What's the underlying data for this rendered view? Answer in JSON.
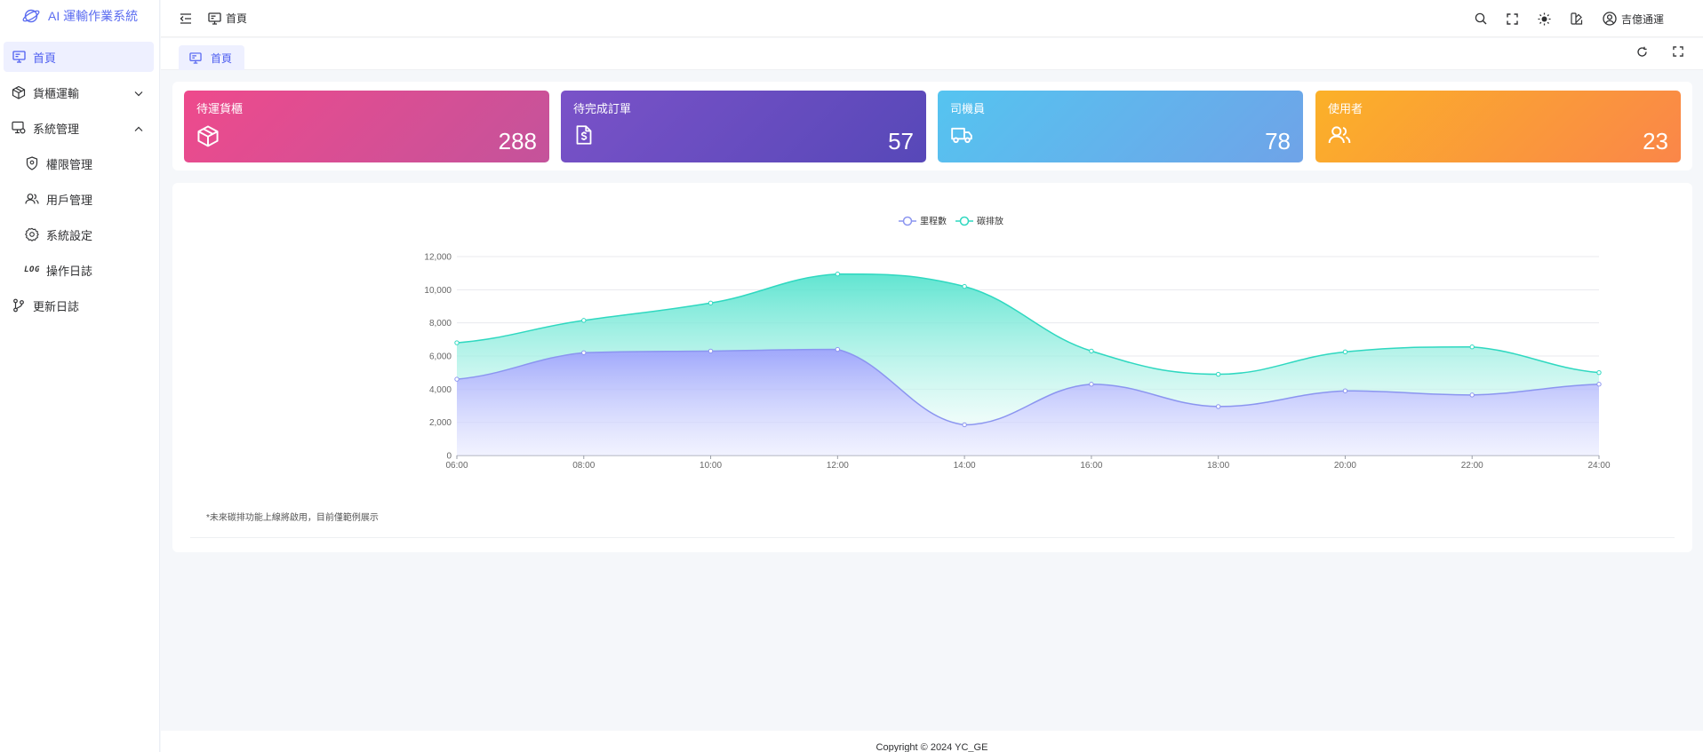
{
  "app": {
    "title": "AI 運輸作業系統"
  },
  "sidebar": {
    "items": [
      {
        "label": "首頁",
        "icon": "monitor-icon"
      },
      {
        "label": "貨櫃運輸",
        "icon": "box-icon"
      },
      {
        "label": "系統管理",
        "icon": "admin-screen-icon"
      },
      {
        "label": "權限管理",
        "icon": "shield-pin-icon"
      },
      {
        "label": "用戶管理",
        "icon": "users-icon"
      },
      {
        "label": "系統設定",
        "icon": "gear-icon"
      },
      {
        "label": "操作日誌",
        "icon": "log-icon",
        "icon_text": "LOG"
      },
      {
        "label": "更新日誌",
        "icon": "branch-icon"
      }
    ]
  },
  "header": {
    "breadcrumb": "首頁",
    "user": "吉億通運"
  },
  "tabs": [
    {
      "label": "首頁"
    }
  ],
  "stats": [
    {
      "title": "待運貨櫃",
      "value": "288",
      "icon": "box-icon"
    },
    {
      "title": "待完成訂單",
      "value": "57",
      "icon": "dollar-doc-icon"
    },
    {
      "title": "司機員",
      "value": "78",
      "icon": "truck-icon"
    },
    {
      "title": "使用者",
      "value": "23",
      "icon": "users-icon"
    }
  ],
  "colors": {
    "accent": "#4f5ff0",
    "series1": "#8b95f0",
    "series2": "#2fd8c0"
  },
  "chart_data": {
    "type": "area",
    "x": [
      "06:00",
      "08:00",
      "10:00",
      "12:00",
      "14:00",
      "16:00",
      "18:00",
      "20:00",
      "22:00",
      "24:00"
    ],
    "yticks": [
      "0",
      "2,000",
      "4,000",
      "6,000",
      "8,000",
      "10,000",
      "12,000"
    ],
    "ylim": [
      0,
      12000
    ],
    "stacked": true,
    "legend": "top-center",
    "grid": true,
    "series": [
      {
        "name": "里程數",
        "values": [
          4600,
          6200,
          6300,
          6400,
          1850,
          4300,
          2950,
          3900,
          3650,
          4300
        ]
      },
      {
        "name": "碳排放",
        "values": [
          2200,
          1950,
          2900,
          4550,
          8350,
          2000,
          1950,
          2350,
          2900,
          700
        ]
      }
    ]
  },
  "note": "*未來碳排功能上線將啟用，目前僅範例展示",
  "footer": "Copyright © 2024 YC_GE"
}
